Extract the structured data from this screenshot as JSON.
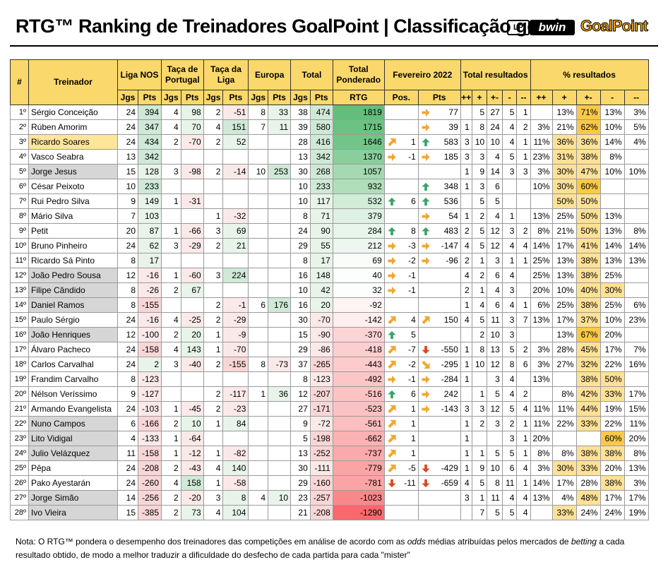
{
  "title": "RTG™ Ranking de Treinadores GoalPoint | Classificação geral",
  "logos": {
    "lp": "LP",
    "bwin": "bwin",
    "goalpoint": "GoalPoint"
  },
  "headers": {
    "rank": "#",
    "coach": "Treinador",
    "liga": "Liga NOS",
    "taca": "Taça de Portugal",
    "tacaliga": "Taça da Liga",
    "europa": "Europa",
    "total": "Total",
    "ponderado": "Total Ponderado",
    "rtg": "RTG",
    "mes": "Fevereiro 2022",
    "totres": "Total resultados",
    "pctres": "% resultados",
    "jgs": "Jgs",
    "pts": "Pts",
    "pos": "Pos.",
    "res": [
      "++",
      "+",
      "+-",
      "-",
      "--"
    ]
  },
  "colors": {
    "header": "#fbd86b",
    "up": "#3aa36a",
    "right": "#f0a832",
    "down": "#d9481e"
  },
  "rows": [
    [
      "1º",
      "Sérgio Conceição",
      "24",
      "394",
      "4",
      "98",
      "2",
      "-51",
      "8",
      "33",
      "38",
      "474",
      "1819",
      "",
      "",
      "right",
      "77",
      "",
      "5",
      "27",
      "5",
      "1",
      "",
      "13%",
      "71%",
      "13%",
      "3%"
    ],
    [
      "2º",
      "Rúben Amorim",
      "24",
      "347",
      "4",
      "70",
      "4",
      "151",
      "7",
      "11",
      "39",
      "580",
      "1715",
      "",
      "",
      "right",
      "39",
      "1",
      "8",
      "24",
      "4",
      "2",
      "3%",
      "21%",
      "62%",
      "10%",
      "5%"
    ],
    [
      "3º",
      "Ricardo Soares",
      "24",
      "434",
      "2",
      "-70",
      "2",
      "52",
      "",
      "",
      "28",
      "416",
      "1646",
      "upright",
      "1",
      "up",
      "583",
      "3",
      "10",
      "10",
      "4",
      "1",
      "11%",
      "36%",
      "36%",
      "14%",
      "4%"
    ],
    [
      "4º",
      "Vasco Seabra",
      "13",
      "342",
      "",
      "",
      "",
      "",
      "",
      "",
      "13",
      "342",
      "1370",
      "right",
      "-1",
      "right",
      "185",
      "3",
      "3",
      "4",
      "5",
      "1",
      "23%",
      "31%",
      "38%",
      "8%",
      ""
    ],
    [
      "5º",
      "Jorge Jesus",
      "15",
      "128",
      "3",
      "-98",
      "2",
      "-14",
      "10",
      "253",
      "30",
      "268",
      "1057",
      "",
      "",
      "",
      "",
      "1",
      "9",
      "14",
      "3",
      "3",
      "3%",
      "30%",
      "47%",
      "10%",
      "10%"
    ],
    [
      "6º",
      "César Peixoto",
      "10",
      "233",
      "",
      "",
      "",
      "",
      "",
      "",
      "10",
      "233",
      "932",
      "",
      "",
      "up",
      "348",
      "1",
      "3",
      "6",
      "",
      "",
      "10%",
      "30%",
      "60%",
      "",
      ""
    ],
    [
      "7º",
      "Rui Pedro Silva",
      "9",
      "149",
      "1",
      "-31",
      "",
      "",
      "",
      "",
      "10",
      "117",
      "532",
      "up",
      "6",
      "up",
      "536",
      "",
      "5",
      "5",
      "",
      "",
      "",
      "50%",
      "50%",
      "",
      ""
    ],
    [
      "8º",
      "Mário Silva",
      "7",
      "103",
      "",
      "",
      "1",
      "-32",
      "",
      "",
      "8",
      "71",
      "379",
      "",
      "",
      "right",
      "54",
      "1",
      "2",
      "4",
      "1",
      "",
      "13%",
      "25%",
      "50%",
      "13%",
      ""
    ],
    [
      "9º",
      "Petit",
      "20",
      "87",
      "1",
      "-66",
      "3",
      "69",
      "",
      "",
      "24",
      "90",
      "284",
      "up",
      "8",
      "up",
      "483",
      "2",
      "5",
      "12",
      "3",
      "2",
      "8%",
      "21%",
      "50%",
      "13%",
      "8%"
    ],
    [
      "10º",
      "Bruno Pinheiro",
      "24",
      "62",
      "3",
      "-29",
      "2",
      "21",
      "",
      "",
      "29",
      "55",
      "212",
      "right",
      "-3",
      "right",
      "-147",
      "4",
      "5",
      "12",
      "4",
      "4",
      "14%",
      "17%",
      "41%",
      "14%",
      "14%"
    ],
    [
      "11º",
      "Ricardo Sá Pinto",
      "8",
      "17",
      "",
      "",
      "",
      "",
      "",
      "",
      "8",
      "17",
      "69",
      "right",
      "-2",
      "right",
      "-96",
      "2",
      "1",
      "3",
      "1",
      "1",
      "25%",
      "13%",
      "38%",
      "13%",
      "13%"
    ],
    [
      "12º",
      "João Pedro Sousa",
      "12",
      "-16",
      "1",
      "-60",
      "3",
      "224",
      "",
      "",
      "16",
      "148",
      "40",
      "right",
      "-1",
      "",
      "",
      "4",
      "2",
      "6",
      "4",
      "",
      "25%",
      "13%",
      "38%",
      "25%",
      ""
    ],
    [
      "13º",
      "Filipe Cândido",
      "8",
      "-26",
      "2",
      "67",
      "",
      "",
      "",
      "",
      "10",
      "42",
      "32",
      "right",
      "-1",
      "",
      "",
      "2",
      "1",
      "4",
      "3",
      "",
      "20%",
      "10%",
      "40%",
      "30%",
      ""
    ],
    [
      "14º",
      "Daniel Ramos",
      "8",
      "-155",
      "",
      "",
      "2",
      "-1",
      "6",
      "176",
      "16",
      "20",
      "-92",
      "",
      "",
      "",
      "",
      "1",
      "4",
      "6",
      "4",
      "1",
      "6%",
      "25%",
      "38%",
      "25%",
      "6%"
    ],
    [
      "15º",
      "Paulo Sérgio",
      "24",
      "-16",
      "4",
      "-25",
      "2",
      "-29",
      "",
      "",
      "30",
      "-70",
      "-142",
      "upright",
      "4",
      "upright",
      "150",
      "4",
      "5",
      "11",
      "3",
      "7",
      "13%",
      "17%",
      "37%",
      "10%",
      "23%"
    ],
    [
      "16º",
      "João Henriques",
      "12",
      "-100",
      "2",
      "20",
      "1",
      "-9",
      "",
      "",
      "15",
      "-90",
      "-370",
      "up",
      "5",
      "",
      "",
      "",
      "2",
      "10",
      "3",
      "",
      "",
      "13%",
      "67%",
      "20%",
      ""
    ],
    [
      "17º",
      "Álvaro Pacheco",
      "24",
      "-158",
      "4",
      "143",
      "1",
      "-70",
      "",
      "",
      "29",
      "-86",
      "-418",
      "upright",
      "-7",
      "down",
      "-550",
      "1",
      "8",
      "13",
      "5",
      "2",
      "3%",
      "28%",
      "45%",
      "17%",
      "7%"
    ],
    [
      "18º",
      "Carlos Carvalhal",
      "24",
      "2",
      "3",
      "-40",
      "2",
      "-155",
      "8",
      "-73",
      "37",
      "-265",
      "-443",
      "upright",
      "-2",
      "downright",
      "-295",
      "1",
      "10",
      "12",
      "8",
      "6",
      "3%",
      "27%",
      "32%",
      "22%",
      "16%"
    ],
    [
      "19º",
      "Frandim Carvalho",
      "8",
      "-123",
      "",
      "",
      "",
      "",
      "",
      "",
      "8",
      "-123",
      "-492",
      "right",
      "-1",
      "right",
      "-284",
      "1",
      "",
      "3",
      "4",
      "",
      "13%",
      "",
      "38%",
      "50%",
      ""
    ],
    [
      "20º",
      "Nélson Veríssimo",
      "9",
      "-127",
      "",
      "",
      "2",
      "-117",
      "1",
      "36",
      "12",
      "-207",
      "-516",
      "up",
      "6",
      "right",
      "242",
      "",
      "1",
      "5",
      "4",
      "2",
      "",
      "8%",
      "42%",
      "33%",
      "17%"
    ],
    [
      "21º",
      "Armando Evangelista",
      "24",
      "-103",
      "1",
      "-45",
      "2",
      "-23",
      "",
      "",
      "27",
      "-171",
      "-523",
      "upright",
      "1",
      "right",
      "-143",
      "3",
      "3",
      "12",
      "5",
      "4",
      "11%",
      "11%",
      "44%",
      "19%",
      "15%"
    ],
    [
      "22º",
      "Nuno Campos",
      "6",
      "-166",
      "2",
      "10",
      "1",
      "84",
      "",
      "",
      "9",
      "-72",
      "-561",
      "upright",
      "1",
      "",
      "",
      "1",
      "2",
      "3",
      "2",
      "1",
      "11%",
      "22%",
      "33%",
      "22%",
      "11%"
    ],
    [
      "23º",
      "Lito Vidigal",
      "4",
      "-133",
      "1",
      "-64",
      "",
      "",
      "",
      "",
      "5",
      "-198",
      "-662",
      "upright",
      "1",
      "",
      "",
      "1",
      "",
      "",
      "3",
      "1",
      "20%",
      "",
      "",
      "60%",
      "20%"
    ],
    [
      "24º",
      "Julio Velázquez",
      "11",
      "-158",
      "1",
      "-12",
      "1",
      "-82",
      "",
      "",
      "13",
      "-252",
      "-737",
      "upright",
      "1",
      "",
      "",
      "1",
      "1",
      "5",
      "5",
      "1",
      "8%",
      "8%",
      "38%",
      "38%",
      "8%"
    ],
    [
      "25º",
      "Pêpa",
      "24",
      "-208",
      "2",
      "-43",
      "4",
      "140",
      "",
      "",
      "30",
      "-111",
      "-779",
      "upright",
      "-5",
      "down",
      "-429",
      "1",
      "9",
      "10",
      "6",
      "4",
      "3%",
      "30%",
      "33%",
      "20%",
      "13%"
    ],
    [
      "26º",
      "Pako Ayestarán",
      "24",
      "-260",
      "4",
      "158",
      "1",
      "-58",
      "",
      "",
      "29",
      "-160",
      "-781",
      "down",
      "-11",
      "down",
      "-659",
      "4",
      "5",
      "8",
      "11",
      "1",
      "14%",
      "17%",
      "28%",
      "38%",
      "3%"
    ],
    [
      "27º",
      "Jorge Simão",
      "14",
      "-256",
      "2",
      "-20",
      "3",
      "8",
      "4",
      "10",
      "23",
      "-257",
      "-1023",
      "",
      "",
      "",
      "",
      "3",
      "1",
      "11",
      "4",
      "4",
      "13%",
      "4%",
      "48%",
      "17%",
      "17%"
    ],
    [
      "28º",
      "Ivo Vieira",
      "15",
      "-385",
      "2",
      "73",
      "4",
      "104",
      "",
      "",
      "21",
      "-208",
      "-1290",
      "",
      "",
      "",
      "",
      "",
      "7",
      "5",
      "5",
      "4",
      "",
      "33%",
      "24%",
      "24%",
      "19%"
    ]
  ],
  "name_style": [
    "",
    "",
    "sel",
    "",
    "grey",
    "",
    "",
    "",
    "",
    "",
    "",
    "grey",
    "grey",
    "grey",
    "",
    "grey",
    "",
    "",
    "",
    "",
    "",
    "grey",
    "grey",
    "grey",
    "",
    "",
    "grey",
    "grey"
  ],
  "note_parts": [
    "Nota: O RTG™ pondera o desempenho dos treinadores das competições em análise de acordo com as ",
    "odds",
    " médias atribuídas pelos mercados de ",
    "betting",
    " a cada resultado obtido, de modo a melhor traduzir a dificuldade do desfecho de cada partida para cada \"mister\""
  ]
}
